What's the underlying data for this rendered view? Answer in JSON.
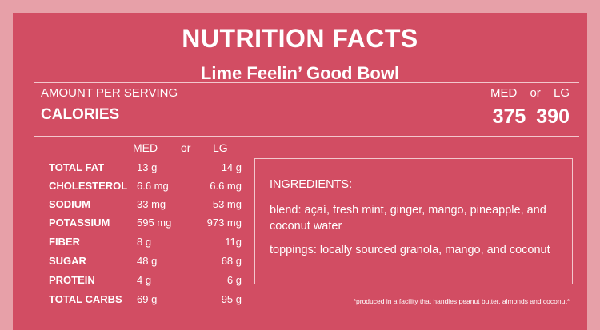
{
  "title": "NUTRITION FACTS",
  "subtitle": "Lime Feelin’ Good Bowl",
  "amount_label": "AMOUNT PER SERVING",
  "calories_label": "CALORIES",
  "sizes": {
    "med": "MED",
    "or": "or",
    "lg": "LG"
  },
  "calories": {
    "med": "375",
    "lg": "390"
  },
  "nutrients": [
    {
      "label": "TOTAL FAT",
      "med": "13 g",
      "lg": "14 g"
    },
    {
      "label": "CHOLESTEROL",
      "med": "6.6 mg",
      "lg": "6.6 mg"
    },
    {
      "label": "SODIUM",
      "med": "33 mg",
      "lg": "53 mg"
    },
    {
      "label": "POTASSIUM",
      "med": "595 mg",
      "lg": "973 mg"
    },
    {
      "label": "FIBER",
      "med": "8 g",
      "lg": "11g"
    },
    {
      "label": "SUGAR",
      "med": "48 g",
      "lg": "68 g"
    },
    {
      "label": "PROTEIN",
      "med": "4 g",
      "lg": "6 g"
    },
    {
      "label": "TOTAL CARBS",
      "med": "69 g",
      "lg": "95 g"
    }
  ],
  "ingredients": {
    "heading": "INGREDIENTS:",
    "blend": "blend: açaí, fresh mint, ginger, mango, pineapple, and coconut water",
    "toppings": "toppings: locally sourced granola, mango, and coconut"
  },
  "footnote": "*produced in a facility that handles peanut butter, almonds and coconut*",
  "colors": {
    "background": "#e7a0a8",
    "panel": "#d24d63",
    "text": "#ffffff",
    "rule": "#f3c7cd"
  }
}
